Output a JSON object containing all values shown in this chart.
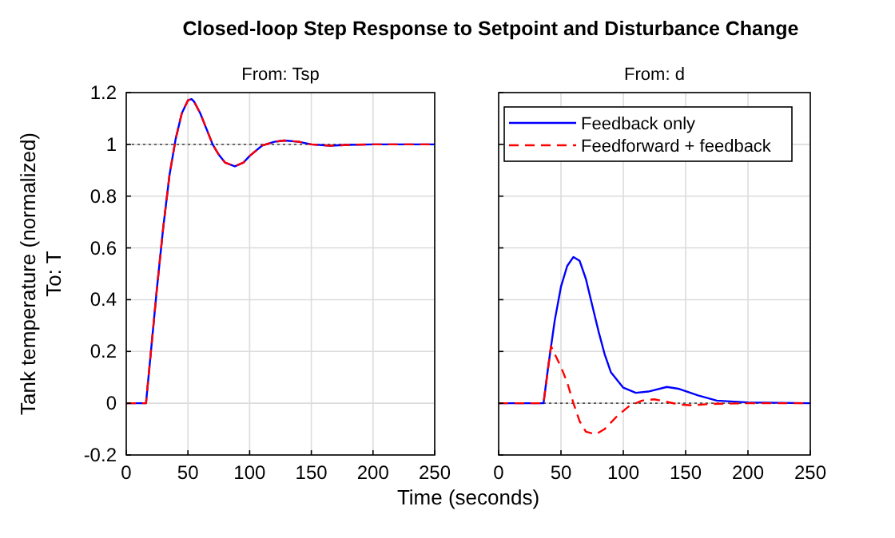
{
  "chart_data": [
    {
      "type": "line",
      "title": "Closed-loop Step Response to Setpoint and Disturbance Change",
      "subtitle": "From: Tsp",
      "xlabel": "Time (seconds)",
      "ylabel": "Tank temperature (normalized)",
      "annotations": [
        "To: T"
      ],
      "xlim": [
        0,
        250
      ],
      "ylim": [
        -0.2,
        1.2
      ],
      "xticks": [
        0,
        50,
        100,
        150,
        200,
        250
      ],
      "yticks": [
        -0.2,
        0,
        0.2,
        0.4,
        0.6,
        0.8,
        1,
        1.2
      ],
      "grid": true,
      "ref_lines": [
        {
          "axis": "y",
          "value": 1,
          "color": "#555555",
          "line_style": "dotted"
        }
      ],
      "series": [
        {
          "color": "#0000ff",
          "line_style": "solid",
          "x": [
            0,
            16,
            20,
            25,
            30,
            35,
            40,
            45,
            50,
            53,
            55,
            60,
            65,
            70,
            75,
            80,
            88,
            95,
            100,
            110,
            120,
            128,
            140,
            150,
            165,
            180,
            200,
            250
          ],
          "values": [
            0,
            0,
            0.2,
            0.45,
            0.68,
            0.88,
            1.02,
            1.12,
            1.17,
            1.175,
            1.165,
            1.12,
            1.06,
            1,
            0.96,
            0.93,
            0.915,
            0.93,
            0.955,
            0.995,
            1.01,
            1.015,
            1.01,
            1,
            0.995,
            0.998,
            1,
            1
          ]
        },
        {
          "color": "#ff0000",
          "line_style": "dashed",
          "x": [
            0,
            16,
            20,
            25,
            30,
            35,
            40,
            45,
            50,
            53,
            55,
            60,
            65,
            70,
            75,
            80,
            88,
            95,
            100,
            110,
            120,
            128,
            140,
            150,
            165,
            180,
            200,
            250
          ],
          "values": [
            0,
            0,
            0.2,
            0.45,
            0.68,
            0.88,
            1.02,
            1.12,
            1.17,
            1.175,
            1.165,
            1.12,
            1.06,
            1,
            0.96,
            0.93,
            0.915,
            0.93,
            0.955,
            0.995,
            1.01,
            1.015,
            1.01,
            1,
            0.995,
            0.998,
            1,
            1
          ]
        }
      ]
    },
    {
      "type": "line",
      "subtitle": "From: d",
      "xlim": [
        0,
        250
      ],
      "ylim": [
        -0.2,
        1.2
      ],
      "xticks": [
        0,
        50,
        100,
        150,
        200,
        250
      ],
      "yticks": [
        -0.2,
        0,
        0.2,
        0.4,
        0.6,
        0.8,
        1,
        1.2
      ],
      "grid": true,
      "tick_labels": "x",
      "legend": "top",
      "ref_lines": [
        {
          "axis": "y",
          "value": 0,
          "color": "#555555",
          "line_style": "dotted"
        }
      ],
      "series": [
        {
          "name": "Feedback only",
          "color": "#0000ff",
          "line_style": "solid",
          "x": [
            0,
            36,
            40,
            45,
            50,
            55,
            60,
            65,
            70,
            75,
            80,
            85,
            90,
            100,
            110,
            120,
            135,
            145,
            160,
            175,
            200,
            250
          ],
          "values": [
            0,
            0,
            0.15,
            0.32,
            0.45,
            0.53,
            0.565,
            0.55,
            0.48,
            0.38,
            0.28,
            0.19,
            0.12,
            0.06,
            0.04,
            0.045,
            0.063,
            0.055,
            0.03,
            0.01,
            0.003,
            0
          ]
        },
        {
          "name": "Feedforward + feedback",
          "color": "#ff0000",
          "line_style": "dashed",
          "x": [
            0,
            36,
            42,
            45,
            50,
            55,
            60,
            65,
            70,
            78,
            85,
            95,
            105,
            115,
            125,
            135,
            145,
            155,
            170,
            200,
            250
          ],
          "values": [
            0,
            0,
            0.22,
            0.19,
            0.14,
            0.08,
            0,
            -0.07,
            -0.11,
            -0.12,
            -0.1,
            -0.05,
            -0.01,
            0.01,
            0.015,
            0.005,
            -0.005,
            -0.008,
            -0.003,
            0,
            0
          ]
        }
      ]
    }
  ]
}
